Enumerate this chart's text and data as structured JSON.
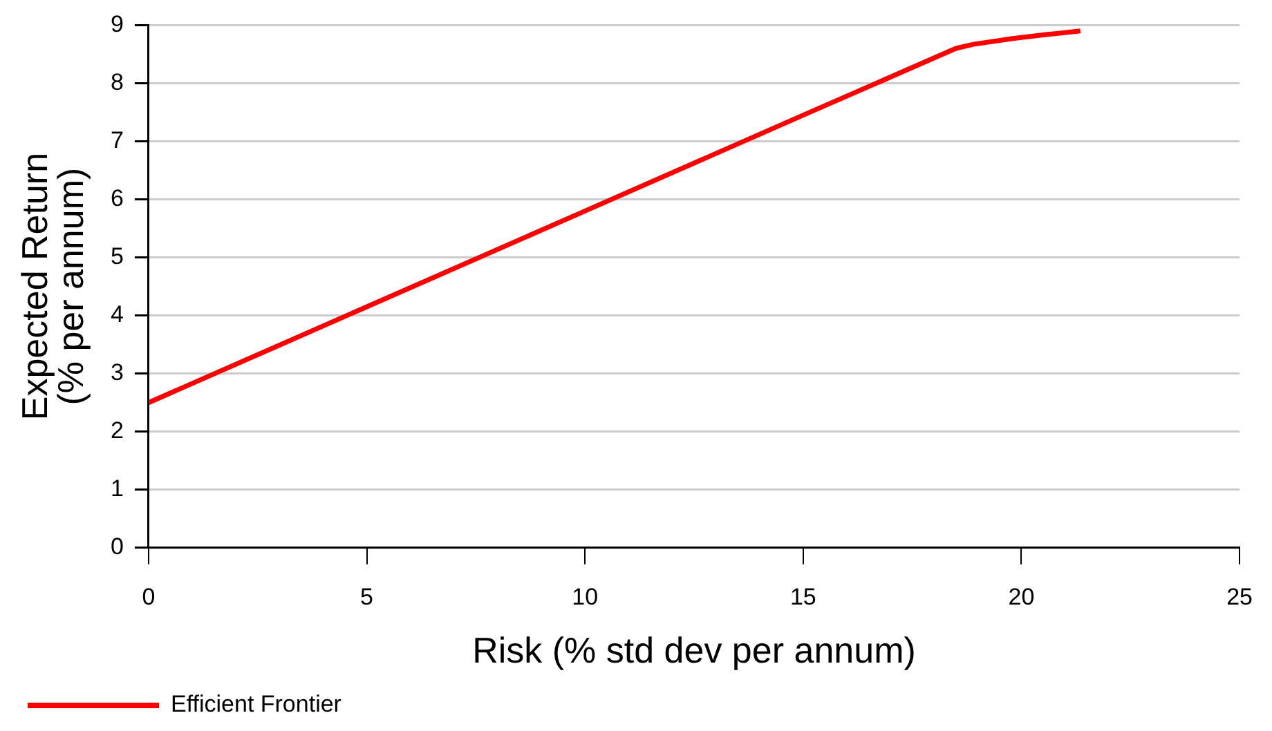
{
  "chart_data": {
    "type": "line",
    "xlabel": "Risk (% std dev per annum)",
    "ylabel": "Expected Return\n(% per annum)",
    "series": [
      {
        "name": "Efficient Frontier",
        "color": "#ff0000",
        "x": [
          0,
          5,
          10,
          15,
          18.5,
          18.9,
          19.8,
          20.6,
          21.35
        ],
        "values": [
          2.5,
          4.15,
          5.8,
          7.45,
          8.6,
          8.67,
          8.77,
          8.84,
          8.9
        ]
      }
    ],
    "xlim": [
      0,
      25
    ],
    "xticks": [
      0,
      5,
      10,
      15,
      20,
      25
    ],
    "ylim": [
      0,
      9
    ],
    "yticks": [
      0,
      1,
      2,
      3,
      4,
      5,
      6,
      7,
      8,
      9
    ],
    "grid": "y",
    "legend": "bottom left",
    "marker": "none",
    "line_style": "solid"
  }
}
